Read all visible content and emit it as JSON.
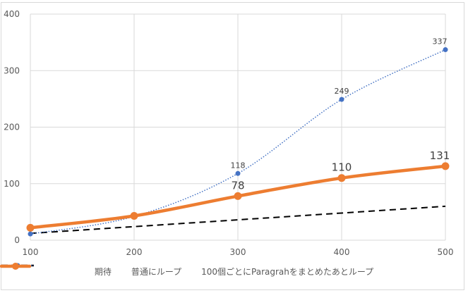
{
  "chart_data": {
    "type": "line",
    "title": "",
    "xlabel": "",
    "ylabel": "",
    "x": [
      100,
      200,
      300,
      400,
      500
    ],
    "xlim": [
      100,
      500
    ],
    "ylim": [
      0,
      400
    ],
    "y_ticks": [
      0,
      100,
      200,
      300,
      400
    ],
    "x_ticks": [
      100,
      200,
      300,
      400,
      500
    ],
    "grid": true,
    "legend_position": "bottom",
    "series": [
      {
        "name": "期待",
        "color": "#000000",
        "style": "dashed",
        "markers": false,
        "values": [
          12,
          24,
          36,
          48,
          60
        ],
        "data_labels": []
      },
      {
        "name": "普通にループ",
        "color": "#4472c4",
        "style": "dotted-smooth",
        "markers": true,
        "values": [
          11,
          42,
          118,
          249,
          337
        ],
        "data_labels": [
          "",
          "",
          "118",
          "249",
          "337"
        ]
      },
      {
        "name": "100個ごとにParagrahをまとめたあとループ",
        "color": "#ed7d31",
        "style": "solid-thick",
        "markers": true,
        "values": [
          22,
          43,
          78,
          110,
          131
        ],
        "data_labels": [
          "",
          "",
          "78",
          "110",
          "131"
        ]
      }
    ]
  },
  "legend": {
    "items": [
      {
        "label": "期待"
      },
      {
        "label": "普通にループ"
      },
      {
        "label": "100個ごとにParagrahをまとめたあとループ"
      }
    ]
  }
}
